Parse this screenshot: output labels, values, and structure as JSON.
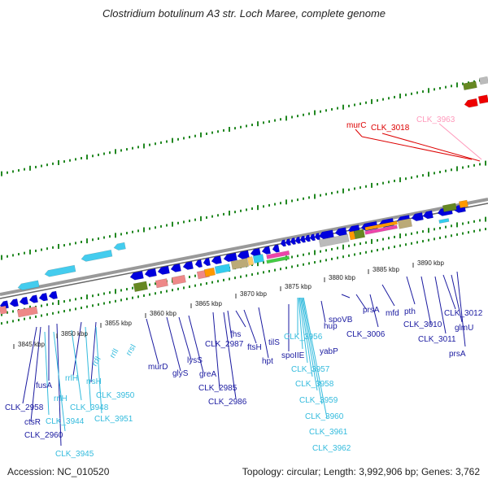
{
  "title": "Clostridium botulinum A3 str. Loch Maree, complete genome",
  "footer": {
    "accession": "Accession: NC_010520",
    "topology": "Topology: circular; Length: 3,992,906 bp; Genes: 3,762"
  },
  "kbp_labels": [
    "3845 kbp",
    "3850 kbp",
    "3855 kbp",
    "3860 kbp",
    "3865 kbp",
    "3870 kbp",
    "3875 kbp",
    "3880 kbp",
    "3885 kbp",
    "3890 kbp"
  ],
  "colors": {
    "forward_gene": "#0000dd",
    "rrna": "#44ccee",
    "label_blue": "#1a1aa0",
    "label_cyan": "#33bbdd",
    "label_red": "#dd0000",
    "label_pink": "#ff99bb",
    "tick_green": "#228822"
  },
  "gene_labels": {
    "murC": "murC",
    "clk3018": "CLK_3018",
    "clk3963": "CLK_3963",
    "clk2958": "CLK_2958",
    "ctsR": "ctsR",
    "clk2960": "CLK_2960",
    "fusA": "fusA",
    "rrfH": "rrfH",
    "rrlH": "rrlH",
    "rrsH": "rrsH",
    "rrfI": "rrfI",
    "rrlI": "rrlI",
    "rrsI": "rrsI",
    "clk3944": "CLK_3944",
    "clk3945": "CLK_3945",
    "clk3948": "CLK_3948",
    "clk3950": "CLK_3950",
    "clk3951": "CLK_3951",
    "murD": "murD",
    "glyS": "glyS",
    "lysS": "lysS",
    "greA": "greA",
    "clk2985": "CLK_2985",
    "clk2986": "CLK_2986",
    "clk2987": "CLK_2987",
    "fhs": "fhs",
    "ftsH": "ftsH",
    "hpt": "hpt",
    "tilS": "tilS",
    "spoIIE": "spoIIE",
    "clk3956": "CLK_3956",
    "clk3957": "CLK_3957",
    "clk3958": "CLK_3958",
    "clk3959": "CLK_3959",
    "clk3960": "CLK_3960",
    "clk3961": "CLK_3961",
    "clk3962": "CLK_3962",
    "yabP": "yabP",
    "hup": "hup",
    "spoVB": "spoVB",
    "prsA1": "prsA",
    "clk3006": "CLK_3006",
    "mfd": "mfd",
    "pth": "pth",
    "clk3010": "CLK_3010",
    "clk3011": "CLK_3011",
    "clk3012": "CLK_3012",
    "glmU": "glmU",
    "prsA2": "prsA"
  }
}
